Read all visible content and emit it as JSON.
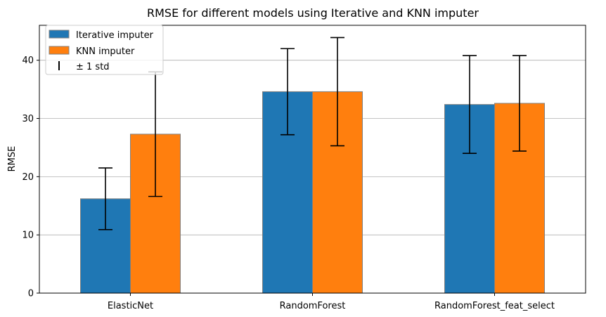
{
  "chart_data": {
    "type": "bar",
    "title": "RMSE for different models using Iterative and KNN imputer",
    "xlabel": "",
    "ylabel": "RMSE",
    "categories": [
      "ElasticNet",
      "RandomForest",
      "RandomForest_feat_select"
    ],
    "series": [
      {
        "name": "Iterative imputer",
        "color": "#1f77b4",
        "values": [
          16.2,
          34.6,
          32.4
        ],
        "std": [
          5.3,
          7.4,
          8.4
        ]
      },
      {
        "name": "KNN imputer",
        "color": "#ff7f0e",
        "values": [
          27.3,
          34.6,
          32.6
        ],
        "std": [
          10.7,
          9.3,
          8.2
        ]
      }
    ],
    "errorbar_legend": "± 1 std",
    "ylim": [
      0,
      46
    ],
    "yticks": [
      0,
      10,
      20,
      30,
      40
    ],
    "grid": "horizontal",
    "legend_position": "top-left"
  }
}
